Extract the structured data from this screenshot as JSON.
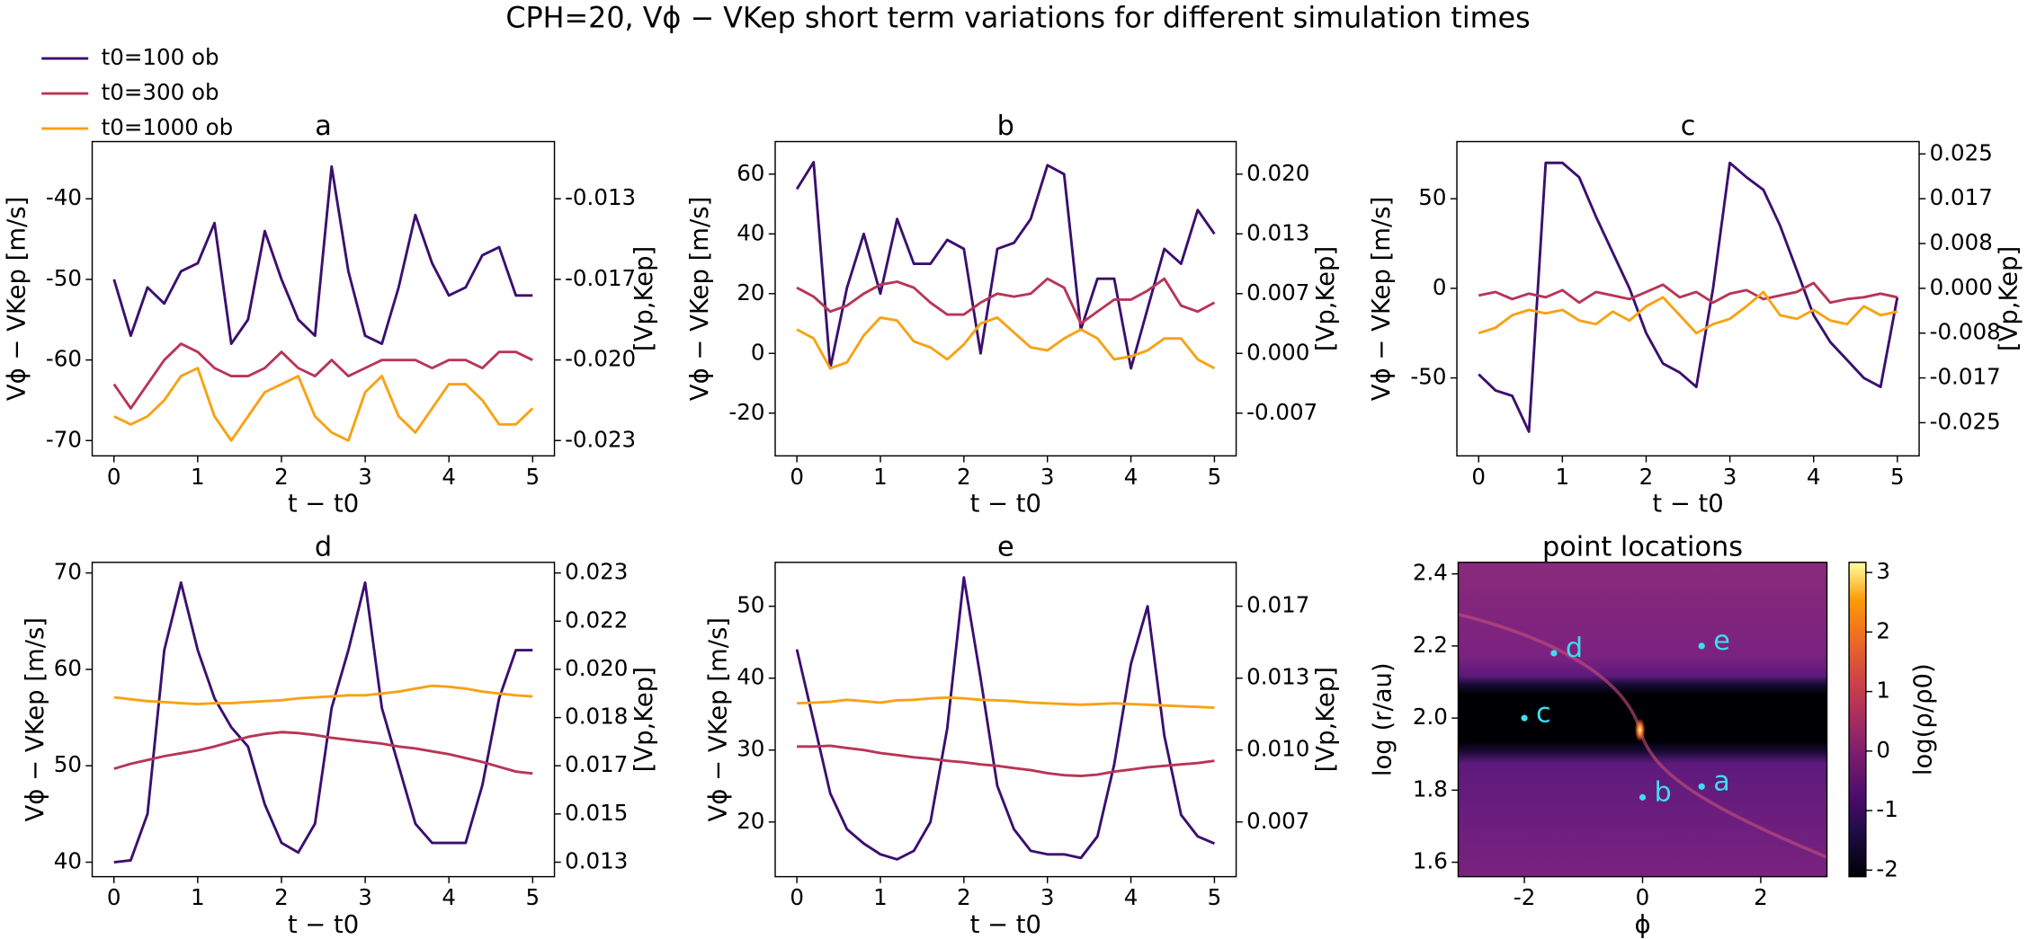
{
  "title": "CPH=20, Vϕ − VKep short term variations for different simulation times",
  "chart_data": [
    {
      "type": "line",
      "title": "a",
      "xlabel": "t − t0",
      "ylabel": "Vϕ − VKep [m/s]",
      "y2label": "[Vp,Kep]",
      "x": [
        0,
        0.2,
        0.4,
        0.6,
        0.8,
        1,
        1.2,
        1.4,
        1.6,
        1.8,
        2,
        2.2,
        2.4,
        2.6,
        2.8,
        3,
        3.2,
        3.4,
        3.6,
        3.8,
        4,
        4.2,
        4.4,
        4.6,
        4.8,
        5
      ],
      "xlim": [
        -0.26,
        5.26
      ],
      "xticks": [
        0,
        1,
        2,
        3,
        4,
        5
      ],
      "ylim": [
        -71.9,
        -32.9
      ],
      "yticks": [
        -70,
        -60,
        -50,
        -40
      ],
      "y2lim": [
        -0.023967,
        -0.010967
      ],
      "y2ticks": [
        {
          "value": -0.023333,
          "label": "-0.023"
        },
        {
          "value": -0.02,
          "label": "-0.020"
        },
        {
          "value": -0.016667,
          "label": "-0.017"
        },
        {
          "value": -0.013333,
          "label": "-0.013"
        }
      ],
      "series": [
        {
          "name": "t0=100 ob",
          "color": "#3b0f6f",
          "values": [
            -50,
            -57,
            -51,
            -53,
            -49,
            -48,
            -43,
            -58,
            -55,
            -44,
            -50,
            -55,
            -57,
            -36,
            -49,
            -57,
            -58,
            -51,
            -42,
            -48,
            -52,
            -51,
            -47,
            -46,
            -52,
            -52
          ]
        },
        {
          "name": "t0=300 ob",
          "color": "#b83556",
          "values": [
            -63,
            -66,
            -63,
            -60,
            -58,
            -59,
            -61,
            -62,
            -62,
            -61,
            -59,
            -61,
            -62,
            -60,
            -62,
            -61,
            -60,
            -60,
            -60,
            -61,
            -60,
            -60,
            -61,
            -59,
            -59,
            -60
          ]
        },
        {
          "name": "t0=1000 ob",
          "color": "#f8a214",
          "values": [
            -67,
            -68,
            -67,
            -65,
            -62,
            -61,
            -67,
            -70,
            -67,
            -64,
            -63,
            -62,
            -67,
            -69,
            -70,
            -64,
            -62,
            -67,
            -69,
            -66,
            -63,
            -63,
            -65,
            -68,
            -68,
            -66
          ]
        }
      ]
    },
    {
      "type": "line",
      "title": "b",
      "xlabel": "t − t0",
      "ylabel": "Vϕ − VKep [m/s]",
      "y2label": "[Vp,Kep]",
      "x": [
        0,
        0.2,
        0.4,
        0.6,
        0.8,
        1,
        1.2,
        1.4,
        1.6,
        1.8,
        2,
        2.2,
        2.4,
        2.6,
        2.8,
        3,
        3.2,
        3.4,
        3.6,
        3.8,
        4,
        4.2,
        4.4,
        4.6,
        4.8,
        5
      ],
      "xlim": [
        -0.26,
        5.26
      ],
      "xticks": [
        0,
        1,
        2,
        3,
        4,
        5
      ],
      "ylim": [
        -34.3,
        70.9
      ],
      "yticks": [
        -20,
        0,
        20,
        40,
        60
      ],
      "y2lim": [
        -0.011433,
        0.023633
      ],
      "y2ticks": [
        {
          "value": -0.006667,
          "label": "-0.007"
        },
        {
          "value": 0,
          "label": "0.000"
        },
        {
          "value": 0.006667,
          "label": "0.007"
        },
        {
          "value": 0.013333,
          "label": "0.013"
        },
        {
          "value": 0.02,
          "label": "0.020"
        }
      ],
      "series": [
        {
          "name": "t0=100 ob",
          "color": "#3b0f6f",
          "values": [
            55,
            64,
            -5,
            22,
            40,
            20,
            45,
            30,
            30,
            38,
            35,
            0,
            35,
            37,
            45,
            63,
            60,
            8,
            25,
            25,
            -5,
            15,
            35,
            30,
            48,
            40
          ]
        },
        {
          "name": "t0=300 ob",
          "color": "#b83556",
          "values": [
            22,
            19,
            14,
            16,
            20,
            23,
            24,
            22,
            17,
            13,
            13,
            17,
            20,
            19,
            20,
            25,
            22,
            10,
            14,
            18,
            18,
            21,
            25,
            16,
            14,
            17
          ]
        },
        {
          "name": "t0=1000 ob",
          "color": "#f8a214",
          "values": [
            8,
            5,
            -5,
            -3,
            6,
            12,
            11,
            4,
            2,
            -2,
            3,
            10,
            12,
            7,
            2,
            1,
            5,
            8,
            5,
            -2,
            -1,
            1,
            5,
            5,
            -2,
            -5
          ]
        }
      ]
    },
    {
      "type": "line",
      "title": "c",
      "xlabel": "t − t0",
      "ylabel": "Vϕ − VKep [m/s]",
      "y2label": "[Vp,Kep]",
      "x": [
        0,
        0.2,
        0.4,
        0.6,
        0.8,
        1,
        1.2,
        1.4,
        1.6,
        1.8,
        2,
        2.2,
        2.4,
        2.6,
        2.8,
        3,
        3.2,
        3.4,
        3.6,
        3.8,
        4,
        4.2,
        4.4,
        4.6,
        4.8,
        5
      ],
      "xlim": [
        -0.26,
        5.26
      ],
      "xticks": [
        0,
        1,
        2,
        3,
        4,
        5
      ],
      "ylim": [
        -93.5,
        81.9
      ],
      "yticks": [
        -50,
        0,
        50
      ],
      "y2lim": [
        -0.031167,
        0.0273
      ],
      "y2ticks": [
        {
          "value": -0.025,
          "label": "-0.025"
        },
        {
          "value": -0.016667,
          "label": "-0.017"
        },
        {
          "value": -0.008333,
          "label": "-0.008"
        },
        {
          "value": 0,
          "label": "0.000"
        },
        {
          "value": 0.008333,
          "label": "0.008"
        },
        {
          "value": 0.016667,
          "label": "0.017"
        },
        {
          "value": 0.025,
          "label": "0.025"
        }
      ],
      "series": [
        {
          "name": "t0=100 ob",
          "color": "#3b0f6f",
          "values": [
            -48,
            -57,
            -60,
            -80,
            70,
            70,
            62,
            40,
            20,
            0,
            -25,
            -42,
            -47,
            -55,
            0,
            70,
            62,
            55,
            35,
            10,
            -15,
            -30,
            -40,
            -50,
            -55,
            -5
          ]
        },
        {
          "name": "t0=300 ob",
          "color": "#b83556",
          "values": [
            -4,
            -2,
            -6,
            -3,
            -5,
            -1,
            -8,
            -2,
            -4,
            -6,
            -2,
            2,
            -5,
            -2,
            -8,
            -3,
            -1,
            -6,
            -4,
            -2,
            3,
            -8,
            -6,
            -5,
            -3,
            -5
          ]
        },
        {
          "name": "t0=1000 ob",
          "color": "#f8a214",
          "values": [
            -25,
            -22,
            -15,
            -12,
            -14,
            -12,
            -18,
            -20,
            -13,
            -18,
            -10,
            -5,
            -15,
            -25,
            -20,
            -17,
            -10,
            -2,
            -15,
            -17,
            -12,
            -18,
            -20,
            -10,
            -15,
            -13
          ]
        }
      ]
    },
    {
      "type": "line",
      "title": "d",
      "xlabel": "t − t0",
      "ylabel": "Vϕ − VKep [m/s]",
      "y2label": "[Vp,Kep]",
      "x": [
        0,
        0.2,
        0.4,
        0.6,
        0.8,
        1,
        1.2,
        1.4,
        1.6,
        1.8,
        2,
        2.2,
        2.4,
        2.6,
        2.8,
        3,
        3.2,
        3.4,
        3.6,
        3.8,
        4,
        4.2,
        4.4,
        4.6,
        4.8,
        5
      ],
      "xlim": [
        -0.26,
        5.26
      ],
      "xticks": [
        0,
        1,
        2,
        3,
        4,
        5
      ],
      "ylim": [
        38.5,
        71.1
      ],
      "yticks": [
        40,
        50,
        60,
        70
      ],
      "y2lim": [
        0.012833,
        0.0237
      ],
      "y2ticks": [
        {
          "value": 0.013333,
          "label": "0.013"
        },
        {
          "value": 0.015,
          "label": "0.015"
        },
        {
          "value": 0.016667,
          "label": "0.017"
        },
        {
          "value": 0.018333,
          "label": "0.018"
        },
        {
          "value": 0.02,
          "label": "0.020"
        },
        {
          "value": 0.021667,
          "label": "0.022"
        },
        {
          "value": 0.023333,
          "label": "0.023"
        }
      ],
      "series": [
        {
          "name": "t0=100 ob",
          "color": "#3b0f6f",
          "values": [
            40,
            40.2,
            45,
            62,
            69,
            62,
            57,
            54,
            52,
            46,
            42,
            41,
            44,
            56,
            62,
            69,
            56,
            50,
            44,
            42,
            42,
            42,
            48,
            57,
            62,
            62
          ]
        },
        {
          "name": "t0=300 ob",
          "color": "#b83556",
          "values": [
            49.7,
            50.2,
            50.6,
            51.0,
            51.3,
            51.6,
            52.0,
            52.5,
            53.0,
            53.3,
            53.5,
            53.4,
            53.2,
            52.9,
            52.7,
            52.5,
            52.3,
            52.0,
            51.8,
            51.5,
            51.2,
            50.8,
            50.4,
            49.9,
            49.4,
            49.2
          ]
        },
        {
          "name": "t0=1000 ob",
          "color": "#f8a214",
          "values": [
            57.1,
            56.9,
            56.7,
            56.6,
            56.5,
            56.4,
            56.5,
            56.5,
            56.6,
            56.7,
            56.8,
            57.0,
            57.1,
            57.2,
            57.3,
            57.3,
            57.5,
            57.7,
            58.0,
            58.3,
            58.2,
            58.0,
            57.7,
            57.5,
            57.3,
            57.2
          ]
        }
      ]
    },
    {
      "type": "line",
      "title": "e",
      "xlabel": "t − t0",
      "ylabel": "Vϕ − VKep [m/s]",
      "y2label": "[Vp,Kep]",
      "x": [
        0,
        0.2,
        0.4,
        0.6,
        0.8,
        1,
        1.2,
        1.4,
        1.6,
        1.8,
        2,
        2.2,
        2.4,
        2.6,
        2.8,
        3,
        3.2,
        3.4,
        3.6,
        3.8,
        4,
        4.2,
        4.4,
        4.6,
        4.8,
        5
      ],
      "xlim": [
        -0.26,
        5.26
      ],
      "xticks": [
        0,
        1,
        2,
        3,
        4,
        5
      ],
      "ylim": [
        12.4,
        56.1
      ],
      "yticks": [
        20,
        30,
        40,
        50
      ],
      "y2lim": [
        0.004133,
        0.0187
      ],
      "y2ticks": [
        {
          "value": 0.006667,
          "label": "0.007"
        },
        {
          "value": 0.01,
          "label": "0.010"
        },
        {
          "value": 0.013333,
          "label": "0.013"
        },
        {
          "value": 0.016667,
          "label": "0.017"
        }
      ],
      "series": [
        {
          "name": "t0=100 ob",
          "color": "#3b0f6f",
          "values": [
            44,
            34,
            24,
            19,
            17,
            15.5,
            14.8,
            16,
            20,
            33,
            54,
            40,
            25,
            19,
            16,
            15.5,
            15.5,
            15,
            18,
            28,
            42,
            50,
            32,
            21,
            18,
            17
          ]
        },
        {
          "name": "t0=300 ob",
          "color": "#b83556",
          "values": [
            30.5,
            30.5,
            30.6,
            30.3,
            30,
            29.6,
            29.3,
            29,
            28.8,
            28.5,
            28.3,
            28,
            27.8,
            27.5,
            27.2,
            26.8,
            26.5,
            26.4,
            26.6,
            27,
            27.3,
            27.6,
            27.8,
            28,
            28.2,
            28.5
          ]
        },
        {
          "name": "t0=1000 ob",
          "color": "#f8a214",
          "values": [
            36.5,
            36.6,
            36.7,
            37,
            36.8,
            36.6,
            36.9,
            37,
            37.2,
            37.3,
            37.2,
            37,
            36.9,
            36.8,
            36.6,
            36.5,
            36.4,
            36.3,
            36.4,
            36.5,
            36.4,
            36.3,
            36.2,
            36.1,
            36,
            35.9
          ]
        }
      ]
    },
    {
      "type": "heatmap",
      "title": "point locations",
      "xlabel": "ϕ",
      "ylabel": "log (r/au)",
      "xlim": [
        -3.12,
        3.12
      ],
      "xticks": [
        -2,
        0,
        2
      ],
      "ylim": [
        1.56,
        2.432
      ],
      "yticks": [
        1.6,
        1.8,
        {
          "value": 2,
          "label": "2.0"
        },
        2.2,
        2.4
      ],
      "points": {
        "labels": [
          "a",
          "b",
          "c",
          "d",
          "e"
        ],
        "x": [
          1,
          0,
          -2,
          -1.5,
          1
        ],
        "y": [
          1.81,
          1.78,
          2.0,
          2.18,
          2.2
        ],
        "color": "#3fdcf0"
      },
      "colorbar": {
        "label": "log(ρ/ρ0)",
        "lim": [
          -2.11,
          3.17
        ],
        "ticks": [
          -2,
          -1,
          0,
          1,
          2,
          3
        ]
      }
    }
  ]
}
